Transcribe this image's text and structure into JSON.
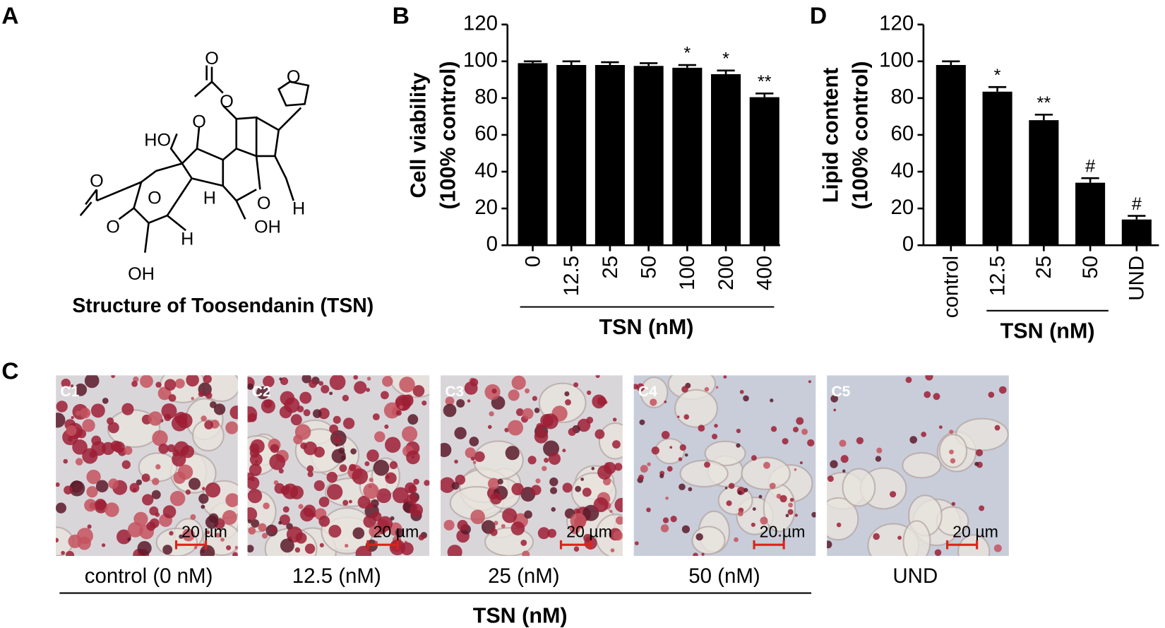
{
  "panel_labels": [
    "A",
    "B",
    "C",
    "D"
  ],
  "structure": {
    "atoms": [
      "O",
      "O",
      "O",
      "HO",
      "O",
      "O",
      "O",
      "O",
      "H",
      "H",
      "O",
      "H",
      "OH",
      "OH"
    ],
    "caption": "Structure of Toosendanin (TSN)"
  },
  "chart_data": [
    {
      "type": "bar",
      "ylabel": [
        "Cell viability",
        "(100% control)"
      ],
      "categories": [
        "0",
        "12.5",
        "25",
        "50",
        "100",
        "200",
        "400"
      ],
      "values": [
        99,
        98,
        98,
        97.5,
        96.5,
        93,
        80.5
      ],
      "errors": [
        1,
        2,
        1.5,
        1.5,
        1.5,
        2,
        2
      ],
      "significance": [
        null,
        null,
        null,
        null,
        "*",
        "*",
        "**"
      ],
      "xlabel": "TSN (nM)",
      "ylim": [
        0,
        120
      ],
      "yticks": [
        0,
        20,
        40,
        60,
        80,
        100,
        120
      ],
      "color": "#000000"
    },
    {
      "type": "bar",
      "ylabel": [
        "Lipid content",
        "(100% control)"
      ],
      "categories": [
        "control",
        "12.5",
        "25",
        "50",
        "UND"
      ],
      "values": [
        98,
        83.5,
        68,
        34,
        14
      ],
      "errors": [
        2,
        2.5,
        3,
        2.5,
        2
      ],
      "significance": [
        null,
        "*",
        "**",
        "#",
        "#"
      ],
      "xlabel": "TSN (nM)",
      "ylim": [
        0,
        120
      ],
      "yticks": [
        0,
        20,
        40,
        60,
        80,
        100,
        120
      ],
      "color": "#000000"
    }
  ],
  "micrographs": {
    "panels": [
      {
        "label": "C1",
        "scale": "20 µm",
        "caption": "control (0 nM)"
      },
      {
        "label": "C2",
        "scale": "20 µm",
        "caption": "12.5 (nM)"
      },
      {
        "label": "C3",
        "scale": "20 µm",
        "caption": "25 (nM)"
      },
      {
        "label": "C4",
        "scale": "20 µm",
        "caption": "50 (nM)"
      },
      {
        "label": "C5",
        "scale": "20 µm",
        "caption": "UND"
      }
    ],
    "group_label": "TSN (nM)"
  }
}
